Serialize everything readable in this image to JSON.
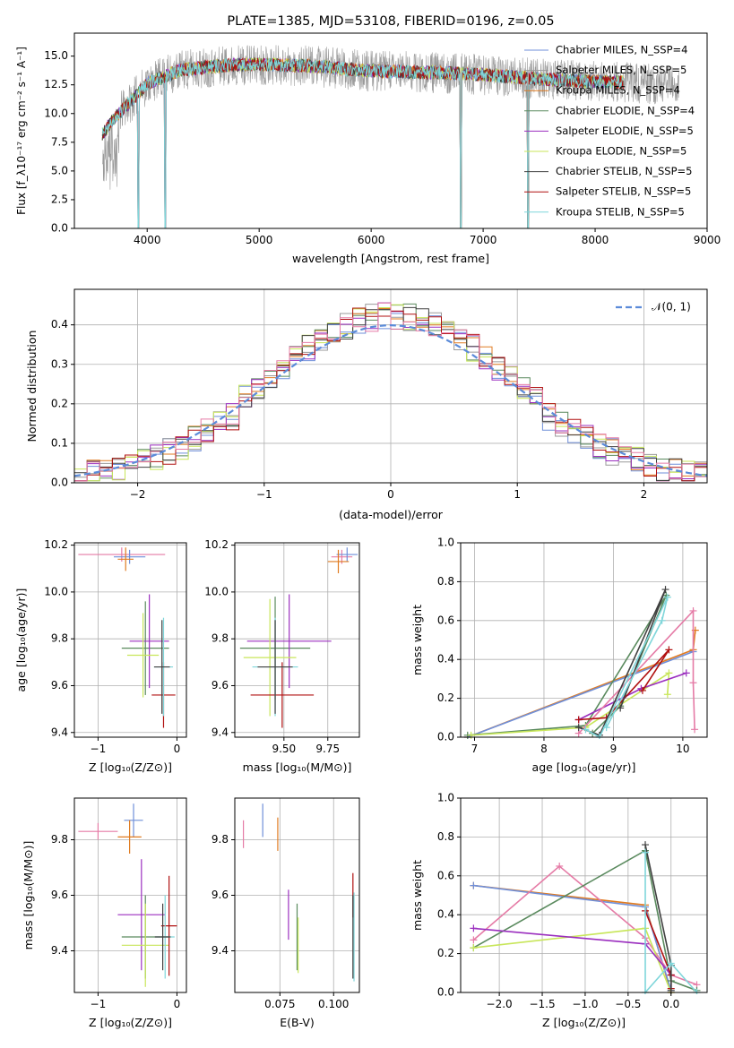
{
  "colors": {
    "chab_miles": "#6f8fd9",
    "salp_miles": "#9a9a9a",
    "krou_miles": "#e07b20",
    "chab_elodie": "#5a8a5e",
    "salp_elodie": "#9b2fbf",
    "krou_elodie": "#c8e65a",
    "chab_stelib": "#404040",
    "salp_stelib": "#b01010",
    "krou_stelib": "#7fd6da",
    "pink": "#e57ba6",
    "gaussian": "#5b8bd9"
  },
  "chart_data": [
    {
      "type": "line",
      "title": "PLATE=1385, MJD=53108, FIBERID=0196, z=0.05",
      "xlabel": "wavelength [Angstrom, rest frame]",
      "ylabel": "Flux [f_λ10⁻¹⁷ erg cm⁻² s⁻¹ A⁻¹]",
      "xlim": [
        3350,
        9000
      ],
      "ylim": [
        0,
        17
      ],
      "xticks": [
        "4000",
        "5000",
        "6000",
        "7000",
        "8000",
        "9000"
      ],
      "yticks": [
        "0.0",
        "2.5",
        "5.0",
        "7.5",
        "10.0",
        "12.5",
        "15.0"
      ],
      "legend_position": "right",
      "legend": [
        {
          "name": "Chabrier MILES, N_SSP=4",
          "color_key": "chab_miles"
        },
        {
          "name": "Salpeter MILES, N_SSP=5",
          "color_key": "salp_miles"
        },
        {
          "name": "Kroupa MILES, N_SSP=4",
          "color_key": "krou_miles"
        },
        {
          "name": "Chabrier ELODIE, N_SSP=4",
          "color_key": "chab_elodie"
        },
        {
          "name": "Salpeter ELODIE, N_SSP=5",
          "color_key": "salp_elodie"
        },
        {
          "name": "Kroupa ELODIE, N_SSP=5",
          "color_key": "krou_elodie"
        },
        {
          "name": "Chabrier STELIB, N_SSP=5",
          "color_key": "chab_stelib"
        },
        {
          "name": "Salpeter STELIB, N_SSP=5",
          "color_key": "salp_stelib"
        },
        {
          "name": "Kroupa STELIB, N_SSP=5",
          "color_key": "krou_stelib"
        }
      ],
      "spectrum_profile": [
        [
          3600,
          8.2
        ],
        [
          3700,
          9.5
        ],
        [
          3850,
          11.0
        ],
        [
          4000,
          12.6
        ],
        [
          4300,
          13.8
        ],
        [
          4700,
          14.2
        ],
        [
          5000,
          14.3
        ],
        [
          5500,
          14.1
        ],
        [
          6000,
          13.7
        ],
        [
          6500,
          13.6
        ],
        [
          7000,
          13.4
        ],
        [
          7500,
          13.0
        ],
        [
          8000,
          12.8
        ],
        [
          8500,
          12.6
        ],
        [
          8750,
          12.5
        ]
      ],
      "dips": [
        [
          3920,
          0
        ],
        [
          4160,
          0
        ],
        [
          6800,
          0
        ],
        [
          7400,
          0
        ]
      ]
    },
    {
      "type": "histogram",
      "xlabel": "(data-model)/error",
      "ylabel": "Normed distribution",
      "xlim": [
        -2.5,
        2.5
      ],
      "ylim": [
        0,
        0.49
      ],
      "xticks": [
        "−2",
        "−1",
        "0",
        "1",
        "2"
      ],
      "yticks": [
        "0.0",
        "0.1",
        "0.2",
        "0.3",
        "0.4"
      ],
      "legend": "𝒩(0, 1)",
      "bin_width": 0.1,
      "series_color_keys": [
        "chab_miles",
        "salp_miles",
        "krou_miles",
        "chab_elodie",
        "salp_elodie",
        "krou_elodie",
        "chab_stelib",
        "salp_stelib",
        "pink"
      ]
    },
    {
      "type": "errorbar",
      "xlabel": "Z [log₁₀(Z/Z⊙)]",
      "ylabel": "age  [log₁₀(age/yr)]",
      "xlim": [
        -1.3,
        0.12
      ],
      "ylim": [
        9.38,
        10.21
      ],
      "xticks": [
        {
          "v": -1,
          "t": "−1"
        },
        {
          "v": 0,
          "t": "0"
        }
      ],
      "yticks": [
        {
          "v": 9.4,
          "t": "9.4"
        },
        {
          "v": 9.6,
          "t": "9.6"
        },
        {
          "v": 9.8,
          "t": "9.8"
        },
        {
          "v": 10.0,
          "t": "10.0"
        },
        {
          "v": 10.2,
          "t": "10.2"
        }
      ],
      "points": [
        {
          "c": "pink",
          "x": -0.7,
          "y": 10.16,
          "xe": 0.55,
          "ye": 0.03
        },
        {
          "c": "chab_miles",
          "x": -0.6,
          "y": 10.15,
          "xe": 0.2,
          "ye": 0.03
        },
        {
          "c": "krou_miles",
          "x": -0.65,
          "y": 10.14,
          "xe": 0.1,
          "ye": 0.05
        },
        {
          "c": "chab_elodie",
          "x": -0.4,
          "y": 9.76,
          "xe": 0.3,
          "ye": 0.2
        },
        {
          "c": "salp_elodie",
          "x": -0.35,
          "y": 9.79,
          "xe": 0.25,
          "ye": 0.2
        },
        {
          "c": "krou_elodie",
          "x": -0.43,
          "y": 9.73,
          "xe": 0.2,
          "ye": 0.18
        },
        {
          "c": "salp_stelib",
          "x": -0.17,
          "y": 9.56,
          "xe": 0.15,
          "ye": 0.14
        },
        {
          "c": "krou_stelib",
          "x": -0.17,
          "y": 9.68,
          "xe": 0.12,
          "ye": 0.21
        },
        {
          "c": "chab_stelib",
          "x": -0.19,
          "y": 9.68,
          "xe": 0.1,
          "ye": 0.2
        }
      ]
    },
    {
      "type": "errorbar",
      "xlabel": "mass [log₁₀(M/M⊙)]",
      "ylabel": "",
      "xlim": [
        9.22,
        9.93
      ],
      "ylim": [
        9.38,
        10.21
      ],
      "xticks": [
        {
          "v": 9.5,
          "t": "9.50"
        },
        {
          "v": 9.75,
          "t": "9.75"
        }
      ],
      "yticks": [
        {
          "v": 9.4,
          "t": "9.4"
        },
        {
          "v": 9.6,
          "t": "9.6"
        },
        {
          "v": 9.8,
          "t": "9.8"
        },
        {
          "v": 10.0,
          "t": "10.0"
        },
        {
          "v": 10.2,
          "t": "10.2"
        }
      ],
      "points": [
        {
          "c": "pink",
          "x": 9.83,
          "y": 10.15,
          "xe": 0.06,
          "ye": 0.03
        },
        {
          "c": "chab_miles",
          "x": 9.86,
          "y": 10.16,
          "xe": 0.06,
          "ye": 0.03
        },
        {
          "c": "krou_miles",
          "x": 9.81,
          "y": 10.13,
          "xe": 0.06,
          "ye": 0.05
        },
        {
          "c": "chab_elodie",
          "x": 9.45,
          "y": 9.76,
          "xe": 0.2,
          "ye": 0.22
        },
        {
          "c": "salp_elodie",
          "x": 9.53,
          "y": 9.79,
          "xe": 0.24,
          "ye": 0.2
        },
        {
          "c": "krou_elodie",
          "x": 9.42,
          "y": 9.72,
          "xe": 0.15,
          "ye": 0.25
        },
        {
          "c": "salp_stelib",
          "x": 9.49,
          "y": 9.56,
          "xe": 0.18,
          "ye": 0.14
        },
        {
          "c": "krou_stelib",
          "x": 9.45,
          "y": 9.68,
          "xe": 0.13,
          "ye": 0.21
        },
        {
          "c": "chab_stelib",
          "x": 9.45,
          "y": 9.68,
          "xe": 0.1,
          "ye": 0.2
        }
      ]
    },
    {
      "type": "line",
      "xlabel": "age  [log₁₀(age/yr)]",
      "ylabel": "mass weight",
      "xlim": [
        6.8,
        10.35
      ],
      "ylim": [
        0,
        1
      ],
      "xticks": [
        {
          "v": 7,
          "t": "7"
        },
        {
          "v": 8,
          "t": "8"
        },
        {
          "v": 9,
          "t": "9"
        },
        {
          "v": 10,
          "t": "10"
        }
      ],
      "yticks": [
        {
          "v": 0,
          "t": "0.0"
        },
        {
          "v": 0.2,
          "t": "0.2"
        },
        {
          "v": 0.4,
          "t": "0.4"
        },
        {
          "v": 0.6,
          "t": "0.6"
        },
        {
          "v": 0.8,
          "t": "0.8"
        },
        {
          "v": 1.0,
          "t": "1.0"
        }
      ],
      "series": [
        {
          "c": "krou_miles",
          "pts": [
            [
              6.9,
              0.0
            ],
            [
              10.15,
              0.45
            ],
            [
              10.18,
              0.55
            ]
          ]
        },
        {
          "c": "chab_miles",
          "pts": [
            [
              6.9,
              0.0
            ],
            [
              10.15,
              0.44
            ]
          ]
        },
        {
          "c": "chab_elodie",
          "pts": [
            [
              6.9,
              0.01
            ],
            [
              8.6,
              0.06
            ],
            [
              9.76,
              0.73
            ],
            [
              9.1,
              0.16
            ],
            [
              8.7,
              0.02
            ]
          ]
        },
        {
          "c": "krou_elodie",
          "pts": [
            [
              6.95,
              0.01
            ],
            [
              8.6,
              0.05
            ],
            [
              9.8,
              0.33
            ],
            [
              9.78,
              0.22
            ]
          ]
        },
        {
          "c": "salp_elodie",
          "pts": [
            [
              8.5,
              0.09
            ],
            [
              9.4,
              0.25
            ],
            [
              10.05,
              0.33
            ]
          ]
        },
        {
          "c": "pink",
          "pts": [
            [
              8.5,
              0.02
            ],
            [
              10.15,
              0.65
            ],
            [
              10.15,
              0.28
            ],
            [
              10.17,
              0.04
            ]
          ]
        },
        {
          "c": "salp_stelib",
          "pts": [
            [
              8.5,
              0.09
            ],
            [
              8.9,
              0.1
            ],
            [
              9.8,
              0.45
            ],
            [
              9.42,
              0.24
            ]
          ]
        },
        {
          "c": "chab_stelib",
          "pts": [
            [
              8.5,
              0.05
            ],
            [
              8.8,
              0.01
            ],
            [
              9.75,
              0.76
            ],
            [
              9.1,
              0.15
            ]
          ]
        },
        {
          "c": "krou_stelib",
          "pts": [
            [
              8.6,
              0.04
            ],
            [
              8.8,
              0.0
            ],
            [
              9.78,
              0.72
            ],
            [
              9.7,
              0.6
            ],
            [
              8.9,
              0.05
            ]
          ]
        }
      ]
    },
    {
      "type": "errorbar",
      "xlabel": "Z [log₁₀(Z/Z⊙)]",
      "ylabel": "mass [log₁₀(M/M⊙)]",
      "xlim": [
        -1.3,
        0.12
      ],
      "ylim": [
        9.25,
        9.95
      ],
      "xticks": [
        {
          "v": -1,
          "t": "−1"
        },
        {
          "v": 0,
          "t": "0"
        }
      ],
      "yticks": [
        {
          "v": 9.4,
          "t": "9.4"
        },
        {
          "v": 9.6,
          "t": "9.6"
        },
        {
          "v": 9.8,
          "t": "9.8"
        }
      ],
      "points": [
        {
          "c": "pink",
          "x": -1.0,
          "y": 9.83,
          "xe": 0.25,
          "ye": 0.03
        },
        {
          "c": "chab_miles",
          "x": -0.55,
          "y": 9.87,
          "xe": 0.12,
          "ye": 0.06
        },
        {
          "c": "krou_miles",
          "x": -0.6,
          "y": 9.81,
          "xe": 0.15,
          "ye": 0.06
        },
        {
          "c": "chab_elodie",
          "x": -0.4,
          "y": 9.45,
          "xe": 0.3,
          "ye": 0.15
        },
        {
          "c": "salp_elodie",
          "x": -0.45,
          "y": 9.53,
          "xe": 0.3,
          "ye": 0.2
        },
        {
          "c": "krou_elodie",
          "x": -0.4,
          "y": 9.42,
          "xe": 0.3,
          "ye": 0.15
        },
        {
          "c": "salp_stelib",
          "x": -0.1,
          "y": 9.49,
          "xe": 0.1,
          "ye": 0.18
        },
        {
          "c": "krou_stelib",
          "x": -0.15,
          "y": 9.45,
          "xe": 0.12,
          "ye": 0.15
        },
        {
          "c": "chab_stelib",
          "x": -0.18,
          "y": 9.45,
          "xe": 0.1,
          "ye": 0.12
        }
      ]
    },
    {
      "type": "errorbar",
      "xlabel": "E(B-V)",
      "ylabel": "",
      "xlim": [
        0.054,
        0.112
      ],
      "ylim": [
        9.25,
        9.95
      ],
      "xticks": [
        {
          "v": 0.075,
          "t": "0.075"
        },
        {
          "v": 0.1,
          "t": "0.100"
        }
      ],
      "yticks": [
        {
          "v": 9.4,
          "t": "9.4"
        },
        {
          "v": 9.6,
          "t": "9.6"
        },
        {
          "v": 9.8,
          "t": "9.8"
        }
      ],
      "points": [
        {
          "c": "pink",
          "x": 0.058,
          "y": 9.82,
          "xe": 0,
          "ye": 0.05
        },
        {
          "c": "chab_miles",
          "x": 0.067,
          "y": 9.87,
          "xe": 0,
          "ye": 0.06
        },
        {
          "c": "krou_miles",
          "x": 0.074,
          "y": 9.82,
          "xe": 0,
          "ye": 0.06
        },
        {
          "c": "salp_elodie",
          "x": 0.079,
          "y": 9.53,
          "xe": 0,
          "ye": 0.09
        },
        {
          "c": "chab_elodie",
          "x": 0.083,
          "y": 9.45,
          "xe": 0,
          "ye": 0.12
        },
        {
          "c": "krou_elodie",
          "x": 0.0835,
          "y": 9.42,
          "xe": 0,
          "ye": 0.1
        },
        {
          "c": "salp_stelib",
          "x": 0.109,
          "y": 9.6,
          "xe": 0,
          "ye": 0.08
        },
        {
          "c": "krou_stelib",
          "x": 0.1095,
          "y": 9.45,
          "xe": 0,
          "ye": 0.16
        },
        {
          "c": "chab_stelib",
          "x": 0.109,
          "y": 9.45,
          "xe": 0,
          "ye": 0.15
        }
      ]
    },
    {
      "type": "line",
      "xlabel": "Z [log₁₀(Z/Z⊙)]",
      "ylabel": "mass weight",
      "xlim": [
        -2.45,
        0.42
      ],
      "ylim": [
        0,
        1
      ],
      "xticks": [
        {
          "v": -2.0,
          "t": "−2.0"
        },
        {
          "v": -1.5,
          "t": "−1.5"
        },
        {
          "v": -1.0,
          "t": "−1.0"
        },
        {
          "v": -0.5,
          "t": "−0.5"
        },
        {
          "v": 0.0,
          "t": "0.0"
        }
      ],
      "yticks": [
        {
          "v": 0,
          "t": "0.0"
        },
        {
          "v": 0.2,
          "t": "0.2"
        },
        {
          "v": 0.4,
          "t": "0.4"
        },
        {
          "v": 0.6,
          "t": "0.6"
        },
        {
          "v": 0.8,
          "t": "0.8"
        },
        {
          "v": 1.0,
          "t": "1.0"
        }
      ],
      "series": [
        {
          "c": "krou_miles",
          "pts": [
            [
              -2.3,
              0.55
            ],
            [
              -0.3,
              0.45
            ],
            [
              0.0,
              0.0
            ]
          ]
        },
        {
          "c": "chab_miles",
          "pts": [
            [
              -2.3,
              0.55
            ],
            [
              -0.3,
              0.44
            ],
            [
              0.0,
              0.01
            ]
          ]
        },
        {
          "c": "pink",
          "pts": [
            [
              -2.3,
              0.27
            ],
            [
              -1.3,
              0.65
            ],
            [
              -0.3,
              0.28
            ],
            [
              0.0,
              0.09
            ],
            [
              0.3,
              0.04
            ]
          ]
        },
        {
          "c": "chab_elodie",
          "pts": [
            [
              -2.3,
              0.23
            ],
            [
              -0.3,
              0.73
            ],
            [
              0.0,
              0.06
            ],
            [
              0.3,
              0.01
            ]
          ]
        },
        {
          "c": "krou_elodie",
          "pts": [
            [
              -2.3,
              0.23
            ],
            [
              -0.3,
              0.33
            ],
            [
              0.0,
              0.0
            ]
          ]
        },
        {
          "c": "salp_elodie",
          "pts": [
            [
              -2.3,
              0.33
            ],
            [
              -0.3,
              0.25
            ],
            [
              0.0,
              0.09
            ]
          ]
        },
        {
          "c": "salp_stelib",
          "pts": [
            [
              -0.3,
              0.42
            ],
            [
              0.0,
              0.09
            ],
            [
              0.0,
              0.02
            ]
          ]
        },
        {
          "c": "chab_stelib",
          "pts": [
            [
              -0.3,
              0.76
            ],
            [
              0.0,
              0.14
            ],
            [
              0.0,
              0.01
            ]
          ]
        },
        {
          "c": "krou_stelib",
          "pts": [
            [
              -0.3,
              0.72
            ],
            [
              -0.3,
              0.0
            ],
            [
              0.0,
              0.15
            ],
            [
              0.3,
              0.0
            ]
          ]
        }
      ]
    }
  ]
}
